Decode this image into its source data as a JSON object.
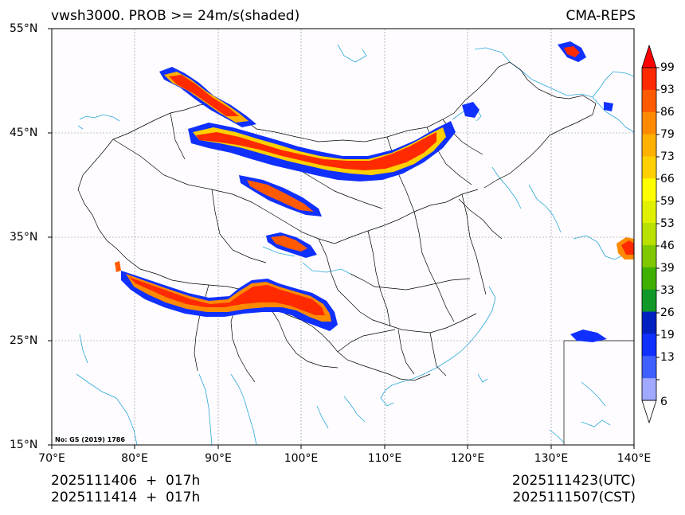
{
  "header": {
    "title_left": "vwsh3000. PROB >= 24m/s(shaded)",
    "title_right": "CMA-REPS"
  },
  "axes": {
    "lat_labels": [
      "55°N",
      "45°N",
      "35°N",
      "25°N",
      "15°N"
    ],
    "lon_labels": [
      "70°E",
      "80°E",
      "90°E",
      "100°E",
      "110°E",
      "120°E",
      "130°E",
      "140°E"
    ]
  },
  "colorbar": {
    "labels": [
      "99",
      "93",
      "86",
      "79",
      "73",
      "66",
      "59",
      "53",
      "46",
      "39",
      "33",
      "26",
      "19",
      "13",
      "6"
    ],
    "colors": [
      "#ff2a00",
      "#ff5a00",
      "#ff8a00",
      "#ffb000",
      "#ffd000",
      "#ffff00",
      "#e0f000",
      "#b8e000",
      "#80c800",
      "#40b000",
      "#109828",
      "#0020c0",
      "#1030ff",
      "#4060ff",
      "#a0a8ff"
    ],
    "over_color": "#ff0000",
    "under_color": "#ffffff"
  },
  "map": {
    "approval_no": "No: GS (2019) 1786",
    "coast_color": "#2aa8d8",
    "border_color": "#000000",
    "grid_color": "#888888"
  },
  "footer": {
    "run_utc": "2025111406  +  017h",
    "run_cst": "2025111414  +  017h",
    "valid_utc": "2025111423(UTC)",
    "valid_cst": "2025111507(CST)"
  }
}
